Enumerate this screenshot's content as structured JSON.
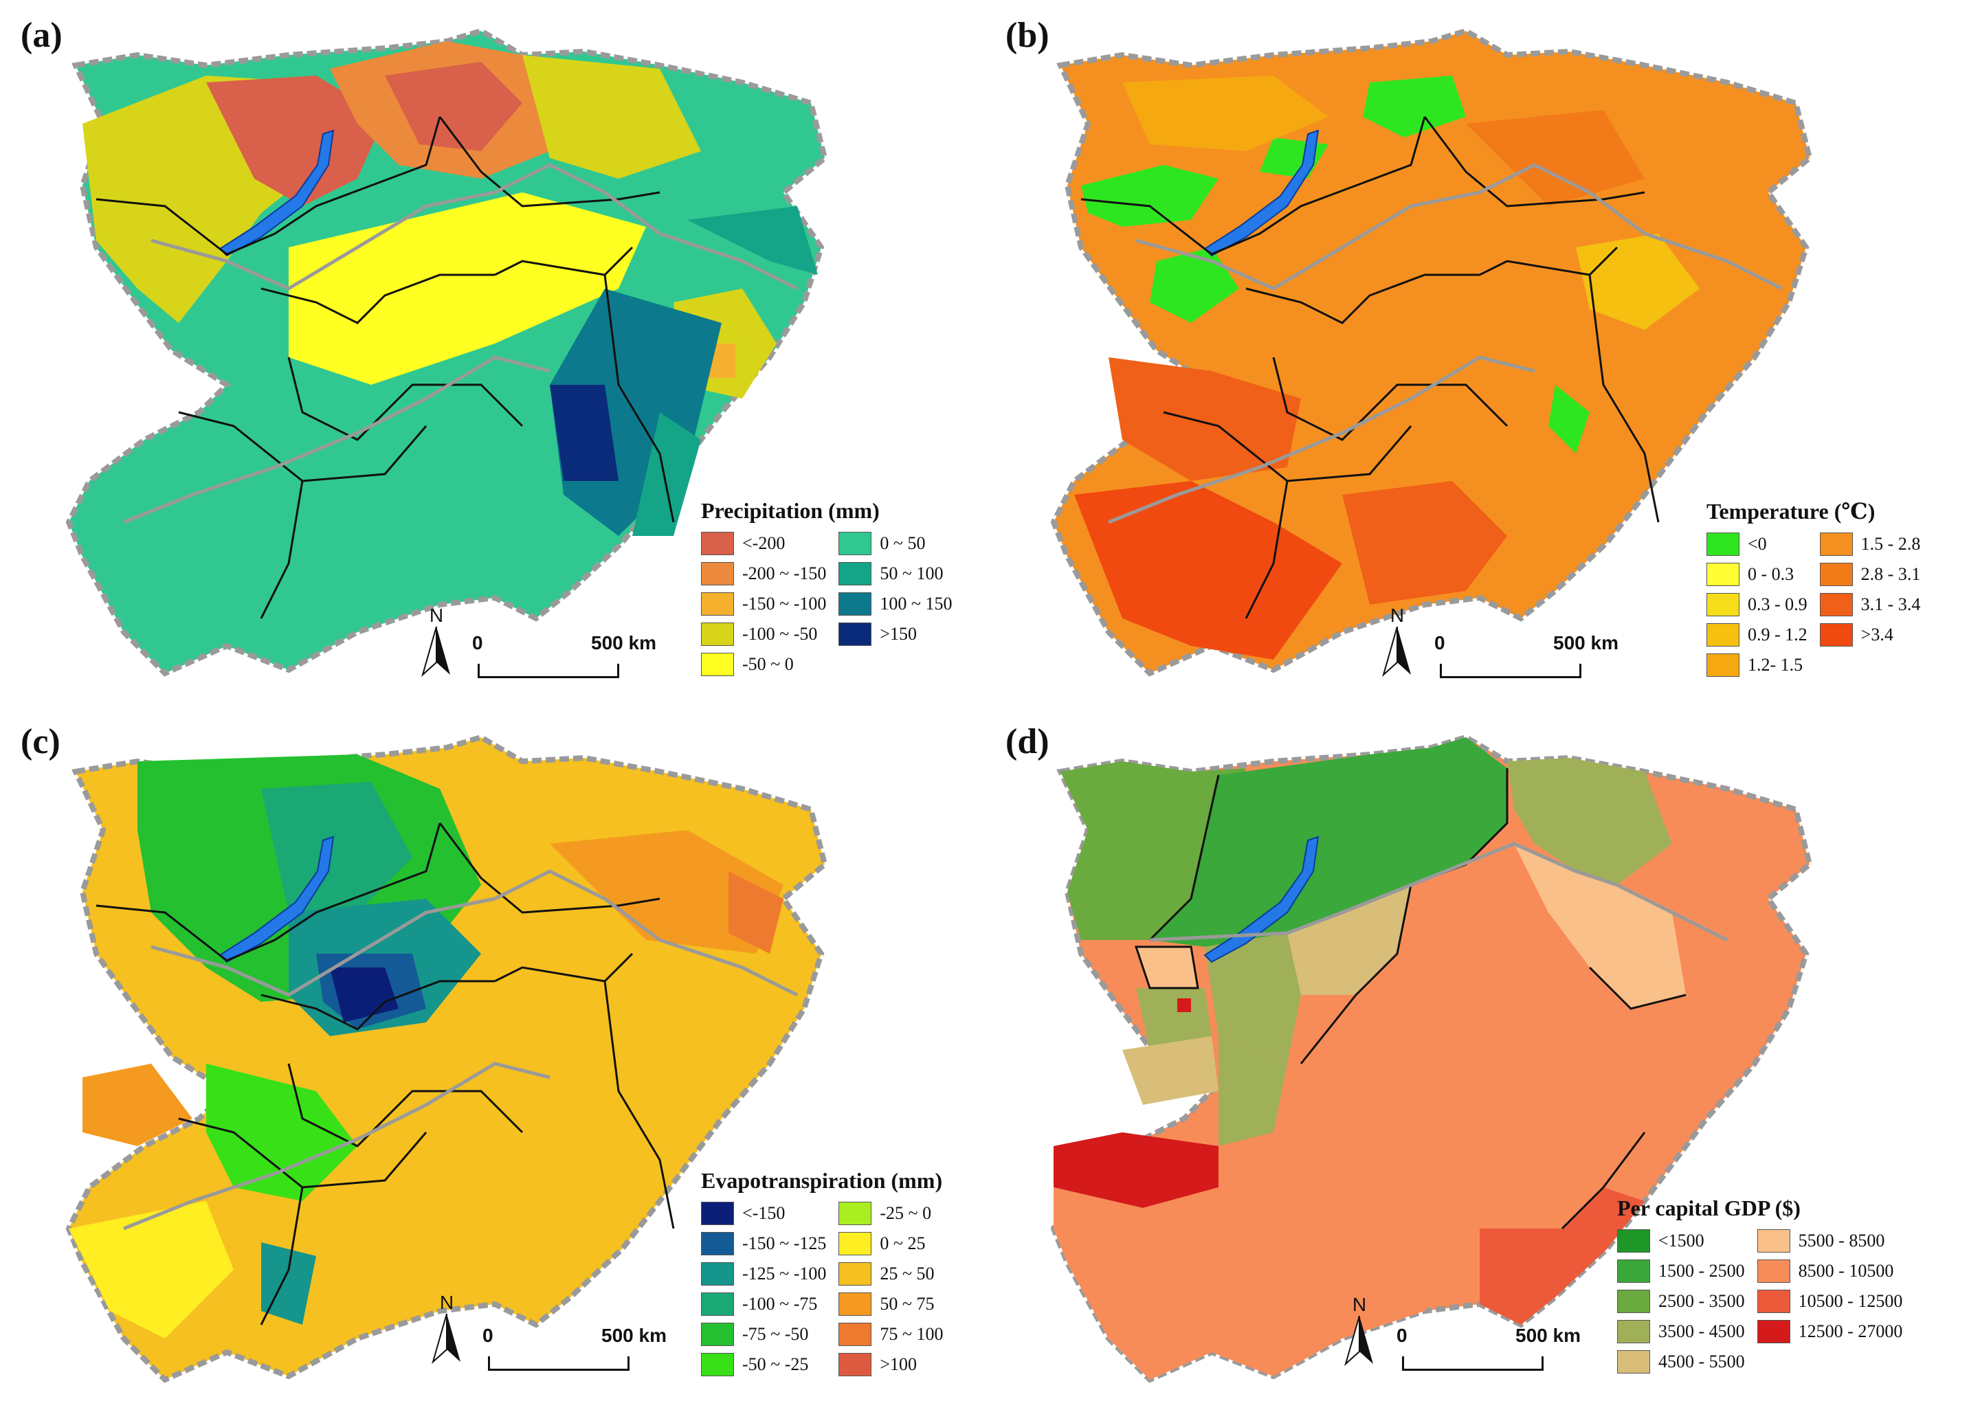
{
  "panels": {
    "a": {
      "label": "(a)",
      "legend_title": "Precipitation (mm)",
      "legend": [
        {
          "label": "<-200",
          "color": "#d9604a"
        },
        {
          "label": "-200 ~ -150",
          "color": "#eb8a3c"
        },
        {
          "label": "-150 ~ -100",
          "color": "#f5b02e"
        },
        {
          "label": "-100 ~ -50",
          "color": "#d8d41a"
        },
        {
          "label": "-50 ~ 0",
          "color": "#ffff22"
        },
        {
          "label": "0 ~ 50",
          "color": "#30c890"
        },
        {
          "label": "50 ~ 100",
          "color": "#14a488"
        },
        {
          "label": "100 ~ 150",
          "color": "#0c7a8c"
        },
        {
          "label": ">150",
          "color": "#0a2a7a"
        }
      ],
      "base_color": "#30c890",
      "north": "N",
      "scale_zero": "0",
      "scale_distance": "500 km"
    },
    "b": {
      "label": "(b)",
      "legend_title": "Temperature (℃)",
      "legend": [
        {
          "label": "<0",
          "color": "#2ee620"
        },
        {
          "label": "0 - 0.3",
          "color": "#ffff33"
        },
        {
          "label": "0.3 - 0.9",
          "color": "#f5dd1a"
        },
        {
          "label": "0.9 - 1.2",
          "color": "#f5c010"
        },
        {
          "label": "1.2- 1.5",
          "color": "#f5a810"
        },
        {
          "label": "1.5 - 2.8",
          "color": "#f59020"
        },
        {
          "label": "2.8 - 3.1",
          "color": "#f27a18"
        },
        {
          "label": "3.1 - 3.4",
          "color": "#f06018"
        },
        {
          "label": ">3.4",
          "color": "#f04a10"
        }
      ],
      "base_color": "#f59020",
      "north": "N",
      "scale_zero": "0",
      "scale_distance": "500 km"
    },
    "c": {
      "label": "(c)",
      "legend_title": "Evapotranspiration (mm)",
      "legend": [
        {
          "label": "<-150",
          "color": "#0a1e78"
        },
        {
          "label": "-150 ~ -125",
          "color": "#145a96"
        },
        {
          "label": "-125 ~ -100",
          "color": "#15958c"
        },
        {
          "label": "-100 ~ -75",
          "color": "#1aa874"
        },
        {
          "label": "-75 ~ -50",
          "color": "#24c030"
        },
        {
          "label": "-50 ~ -25",
          "color": "#38e018"
        },
        {
          "label": "-25 ~ 0",
          "color": "#aaee22"
        },
        {
          "label": "0 ~ 25",
          "color": "#ffee22"
        },
        {
          "label": "25 ~ 50",
          "color": "#f5c020"
        },
        {
          "label": "50 ~ 75",
          "color": "#f59a20"
        },
        {
          "label": "75 ~ 100",
          "color": "#ee7a30"
        },
        {
          "label": ">100",
          "color": "#dd5a40"
        }
      ],
      "base_color": "#f5c020",
      "north": "N",
      "scale_zero": "0",
      "scale_distance": "500 km"
    },
    "d": {
      "label": "(d)",
      "legend_title": "Per capital GDP ($)",
      "legend": [
        {
          "label": "<1500",
          "color": "#1e9628"
        },
        {
          "label": "1500 - 2500",
          "color": "#3aa83a"
        },
        {
          "label": "2500 - 3500",
          "color": "#6aaa3e"
        },
        {
          "label": "3500 - 4500",
          "color": "#a0b058"
        },
        {
          "label": "4500 - 5500",
          "color": "#d8be78"
        },
        {
          "label": "5500 - 8500",
          "color": "#f9c08a"
        },
        {
          "label": "8500 - 10500",
          "color": "#f88c58"
        },
        {
          "label": "10500 - 12500",
          "color": "#ec5a3a"
        },
        {
          "label": "12500 - 27000",
          "color": "#d41a1a"
        }
      ],
      "base_color": "#f88c58",
      "north": "N",
      "scale_zero": "0",
      "scale_distance": "500 km"
    }
  },
  "lake_color": "#2478e8",
  "border_color": "#9a9a9a"
}
